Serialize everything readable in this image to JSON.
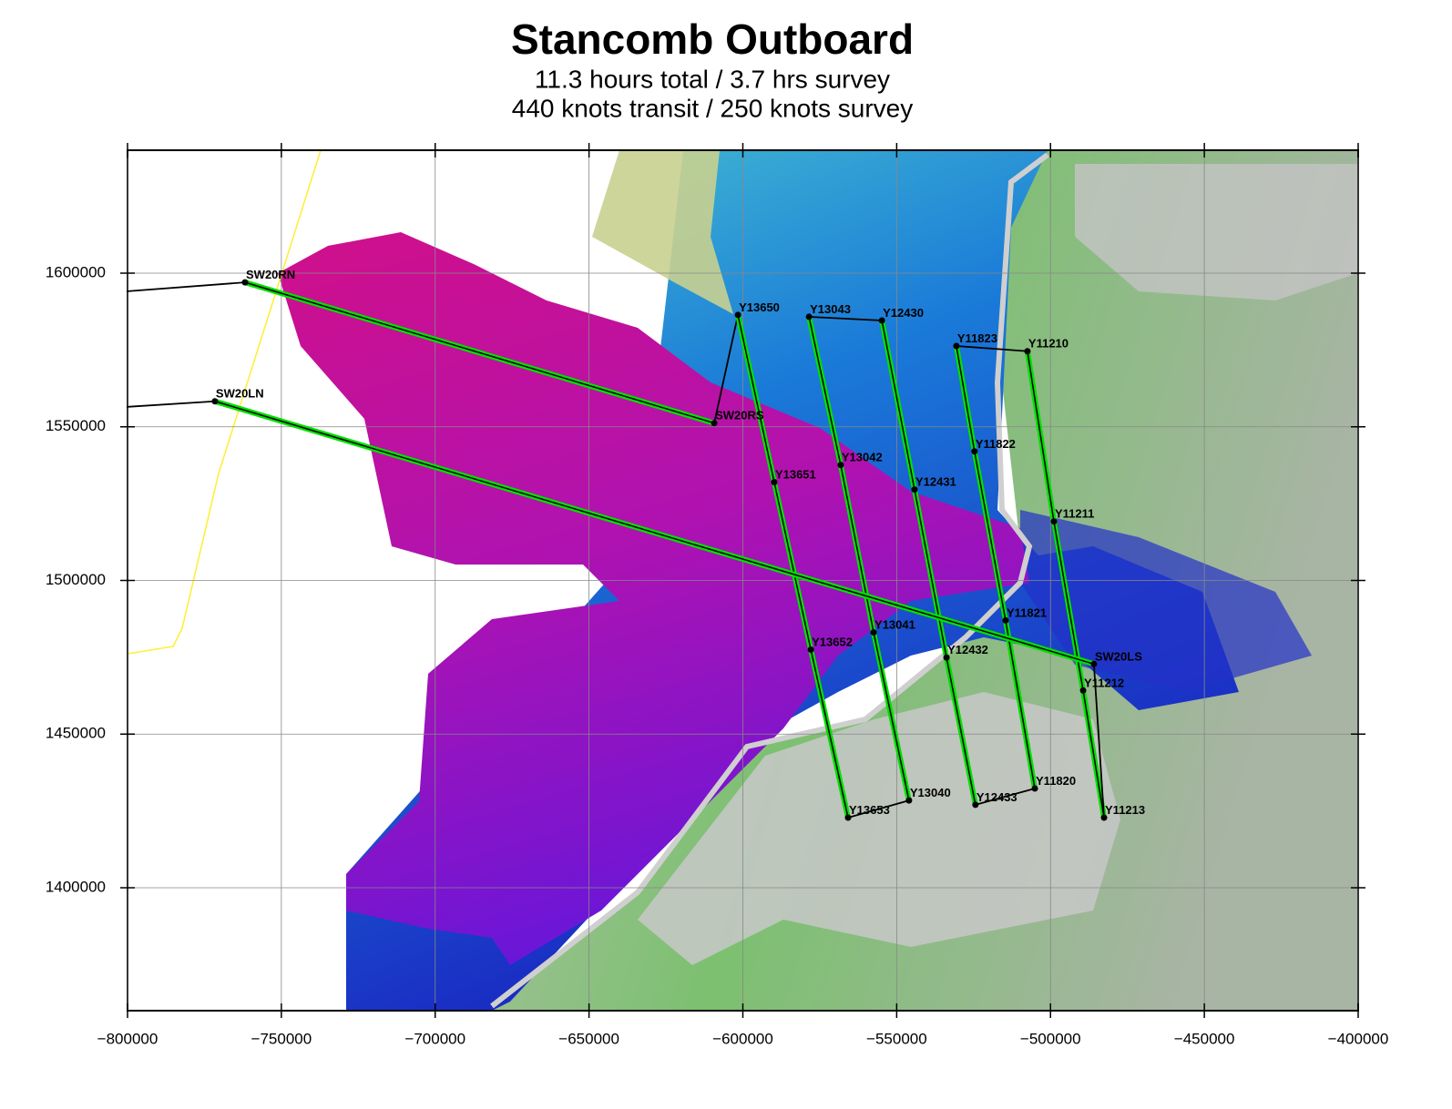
{
  "chart_data": {
    "type": "route_map",
    "title": "Stancomb Outboard",
    "subtitle": [
      "11.3 hours total / 3.7 hrs survey",
      "440 knots transit / 250 knots survey"
    ],
    "xlim": [
      -800000,
      -400000
    ],
    "ylim": [
      1360000,
      1640000
    ],
    "xticks": [
      {
        "value": -800000,
        "label": "−800000"
      },
      {
        "value": -750000,
        "label": "−750000"
      },
      {
        "value": -700000,
        "label": "−700000"
      },
      {
        "value": -650000,
        "label": "−650000"
      },
      {
        "value": -600000,
        "label": "−600000"
      },
      {
        "value": -550000,
        "label": "−550000"
      },
      {
        "value": -500000,
        "label": "−500000"
      },
      {
        "value": -450000,
        "label": "−450000"
      },
      {
        "value": -400000,
        "label": "−400000"
      }
    ],
    "yticks": [
      1400000,
      1450000,
      1500000,
      1550000,
      1600000
    ],
    "grid": true,
    "route": {
      "names": [
        null,
        "SW20RN",
        "SW20RS",
        "Y13650",
        "Y13651",
        "Y13652",
        "Y13653",
        "Y13040",
        "Y13041",
        "Y13042",
        "Y13043",
        "Y12430",
        "Y12431",
        "Y12432",
        "Y12433",
        "Y11820",
        "Y11821",
        "Y11822",
        "Y11823",
        "Y11210",
        "Y11211",
        "Y11212",
        "Y11213",
        "SW20LS",
        "SW20LN",
        null
      ],
      "x": [
        -800000,
        -761800,
        -609300,
        -601600,
        -589800,
        -577900,
        -565800,
        -546000,
        -557500,
        -568200,
        -578500,
        -554800,
        -544200,
        -533800,
        -524400,
        -505100,
        -514600,
        -524700,
        -530600,
        -507500,
        -498900,
        -489400,
        -482600,
        -485900,
        -771600,
        -800000
      ],
      "y": [
        1594100,
        1597000,
        1551200,
        1586400,
        1532000,
        1477500,
        1422800,
        1428400,
        1483100,
        1537600,
        1585800,
        1584600,
        1529600,
        1474900,
        1427000,
        1432300,
        1487000,
        1542000,
        1576300,
        1574600,
        1519200,
        1464200,
        1422800,
        1472800,
        1558300,
        1556500
      ],
      "leg_colors": [
        "#000000",
        "#00e000",
        "#000000",
        "#00e000",
        "#00e000",
        "#00e000",
        "#000000",
        "#00e000",
        "#00e000",
        "#00e000",
        "#000000",
        "#00e000",
        "#00e000",
        "#00e000",
        "#000000",
        "#00e000",
        "#00e000",
        "#00e000",
        "#000000",
        "#00e000",
        "#00e000",
        "#00e000",
        "#000000",
        "#00e000",
        "#000000",
        null
      ]
    }
  }
}
